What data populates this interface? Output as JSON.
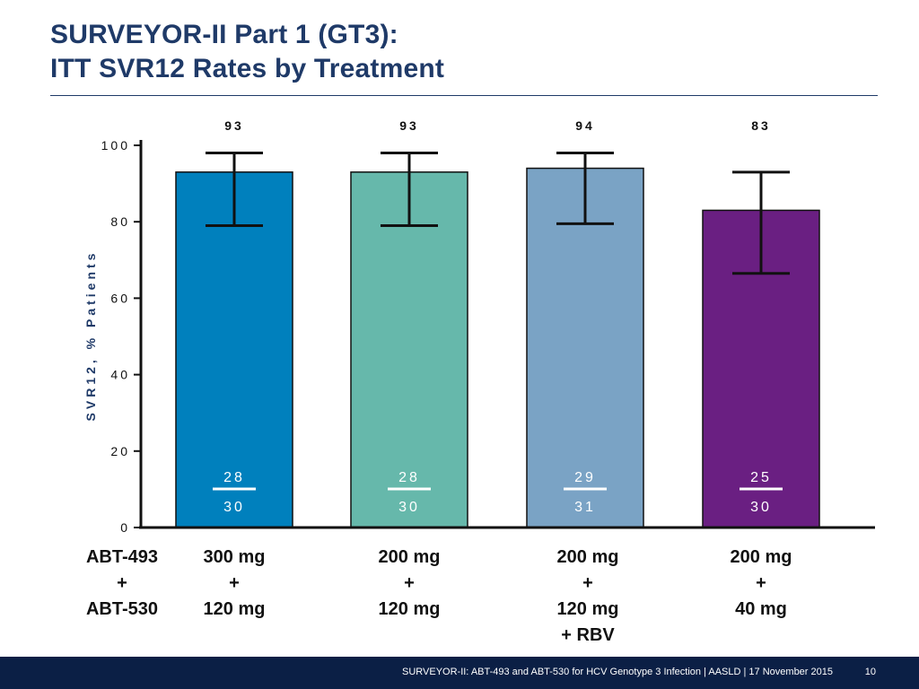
{
  "slide": {
    "title_line1": "SURVEYOR-II Part 1 (GT3):",
    "title_line2": "ITT SVR12 Rates by Treatment",
    "footer_text": "SURVEYOR-II: ABT-493 and ABT-530 for HCV Genotype 3 Infection   | AASLD | 17 November 2015",
    "page_number": "10"
  },
  "colors": {
    "title": "#1f3a68",
    "footer_bg": "#0b1f45"
  },
  "drug_label": [
    "ABT-493",
    "+",
    "ABT-530"
  ],
  "chart_data": {
    "type": "bar",
    "title": "ITT SVR12 Rates by Treatment",
    "ylabel": "SVR12, % Patients",
    "xlabel": "",
    "ylim": [
      0,
      100
    ],
    "yticks": [
      0,
      20,
      40,
      60,
      80,
      100
    ],
    "ytick_labels": [
      "0",
      "20",
      "40",
      "60",
      "80",
      "100"
    ],
    "categories": [
      "300 mg + 120 mg",
      "200 mg + 120 mg",
      "200 mg + 120 mg + RBV",
      "200 mg + 40 mg"
    ],
    "category_lines": [
      [
        "300 mg",
        "+",
        "120 mg"
      ],
      [
        "200 mg",
        "+",
        "120 mg"
      ],
      [
        "200 mg",
        "+",
        "120 mg",
        "+ RBV"
      ],
      [
        "200 mg",
        "+",
        "40 mg"
      ]
    ],
    "values": [
      93,
      93,
      94,
      83
    ],
    "value_labels": [
      "93",
      "93",
      "94",
      "83"
    ],
    "error_low": [
      79,
      79,
      79.5,
      66.5
    ],
    "error_high": [
      98,
      98,
      98,
      93
    ],
    "numerators": [
      "28",
      "28",
      "29",
      "25"
    ],
    "denominators": [
      "30",
      "30",
      "31",
      "30"
    ],
    "colors": [
      "#0080bd",
      "#66b8ab",
      "#7aa3c5",
      "#6a1f82"
    ],
    "grid": false
  }
}
